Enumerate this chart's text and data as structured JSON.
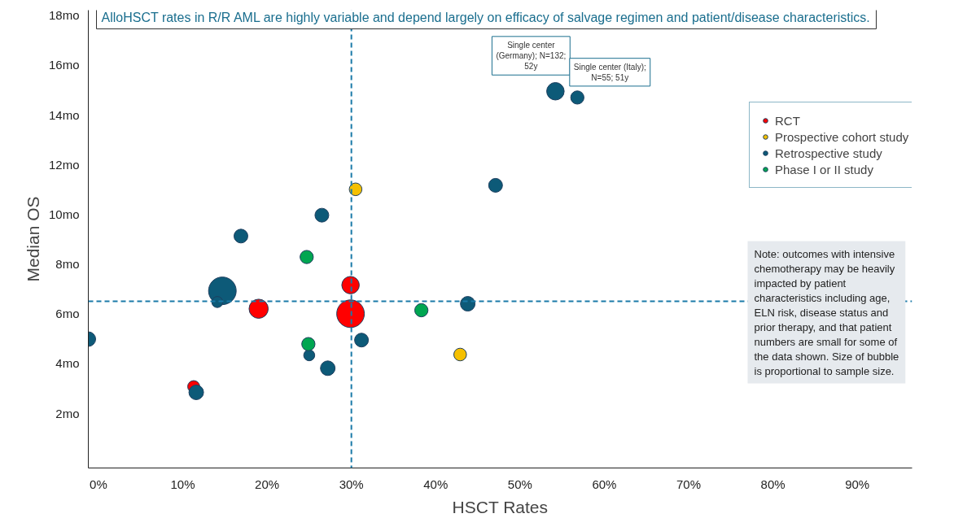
{
  "chart_data": {
    "type": "bubble",
    "title": "AlloHSCT rates in R/R AML are highly variable and depend largely on efficacy of salvage regimen and patient/disease characteristics.",
    "xlabel": "HSCT Rates",
    "ylabel": "Median OS",
    "xlim": [
      -1.2,
      96.5
    ],
    "ylim": [
      -0.2,
      18.2
    ],
    "xticks": [
      {
        "value": 0,
        "label": "0%"
      },
      {
        "value": 10,
        "label": "10%"
      },
      {
        "value": 20,
        "label": "20%"
      },
      {
        "value": 30,
        "label": "30%"
      },
      {
        "value": 40,
        "label": "40%"
      },
      {
        "value": 50,
        "label": "50%"
      },
      {
        "value": 60,
        "label": "60%"
      },
      {
        "value": 70,
        "label": "70%"
      },
      {
        "value": 80,
        "label": "80%"
      },
      {
        "value": 90,
        "label": "90%"
      }
    ],
    "yticks": [
      {
        "value": 2,
        "label": "2mo"
      },
      {
        "value": 4,
        "label": "4mo"
      },
      {
        "value": 6,
        "label": "6mo"
      },
      {
        "value": 8,
        "label": "8mo"
      },
      {
        "value": 10,
        "label": "10mo"
      },
      {
        "value": 12,
        "label": "12mo"
      },
      {
        "value": 14,
        "label": "14mo"
      },
      {
        "value": 16,
        "label": "16mo"
      },
      {
        "value": 18,
        "label": "18mo"
      }
    ],
    "series": [
      {
        "name": "RCT",
        "color": "#ff0000",
        "x": [
          11.3,
          19.0,
          29.9,
          29.9
        ],
        "values": [
          3.07,
          6.2,
          7.15,
          6.0
        ],
        "sizes": [
          0.19,
          0.48,
          0.4,
          1.0
        ]
      },
      {
        "name": "Prospective cohort study",
        "color": "#f5c000",
        "x": [
          30.5,
          42.9
        ],
        "values": [
          11.0,
          4.36
        ],
        "sizes": [
          0.21,
          0.21
        ]
      },
      {
        "name": "Retrospective study",
        "color": "#0d5a78",
        "x": [
          -1.2,
          11.6,
          14.7,
          14.1,
          16.9,
          26.5,
          25.0,
          27.2,
          31.2,
          43.8,
          47.1,
          54.2,
          56.8
        ],
        "values": [
          4.98,
          2.84,
          6.92,
          6.47,
          9.12,
          9.96,
          4.33,
          3.81,
          4.94,
          6.4,
          11.16,
          14.94,
          14.69
        ],
        "sizes": [
          0.28,
          0.28,
          1.0,
          0.16,
          0.25,
          0.25,
          0.16,
          0.28,
          0.25,
          0.28,
          0.25,
          0.4,
          0.23
        ]
      },
      {
        "name": "Phase I or II study",
        "color": "#00a651",
        "x": [
          24.7,
          24.9,
          38.3
        ],
        "values": [
          8.28,
          4.78,
          6.14
        ],
        "sizes": [
          0.23,
          0.23,
          0.23
        ]
      }
    ],
    "ref_lines": [
      {
        "axis": "x",
        "value": 30,
        "color": "#1a7aa8",
        "line_style": "dashed"
      },
      {
        "axis": "y",
        "value": 6.5,
        "color": "#1a7aa8",
        "line_style": "dashed"
      }
    ],
    "annotations": [
      {
        "text": "Single center (Germany); N=132; 52y",
        "x": 54.2,
        "y": 14.94
      },
      {
        "text": "Single center (Italy); N=55; 51y",
        "x": 56.8,
        "y": 14.69
      },
      "Note: outcomes with intensive chemotherapy may be heavily impacted by patient characteristics including age, ELN risk, disease status and prior therapy, and that patient numbers are small for some of the data shown. Size of bubble is proportional to sample size."
    ],
    "legend": "top right",
    "grid": false
  }
}
